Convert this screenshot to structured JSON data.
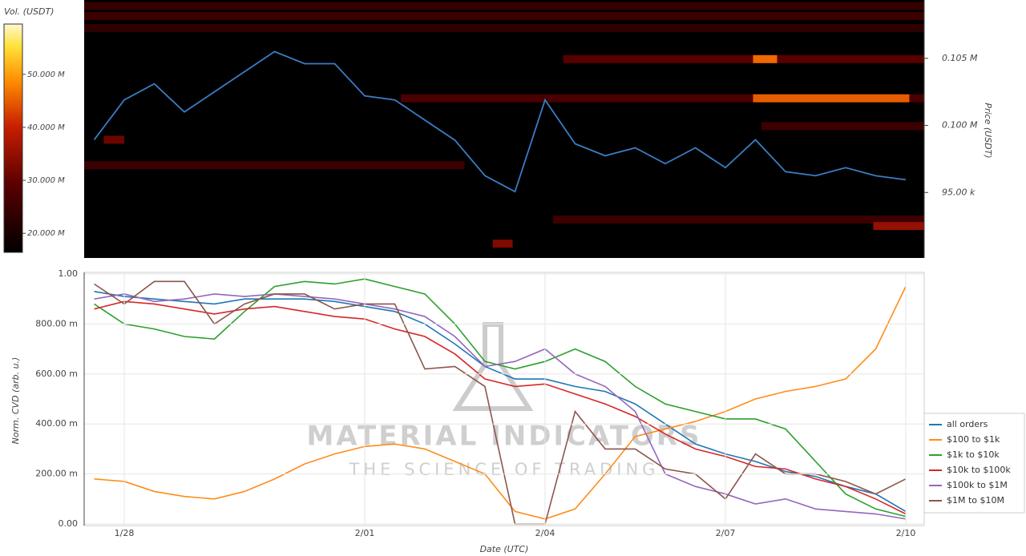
{
  "chart_data": [
    {
      "type": "heatmap",
      "colorbar_label": "Vol. (USDT)",
      "ylabel": "Price (USDT)",
      "xlim": [
        27.333,
        41.307
      ],
      "ylim": [
        90120,
        109346
      ],
      "yticks": [
        {
          "value": 95000,
          "label": "95.00 k"
        },
        {
          "value": 100000,
          "label": "0.100 M"
        },
        {
          "value": 105000,
          "label": "0.105 M"
        }
      ],
      "zlim": [
        16.4,
        59.5
      ],
      "zticks": [
        {
          "value": 20,
          "label": "20.000 M"
        },
        {
          "value": 30,
          "label": "30.000 M"
        },
        {
          "value": 40,
          "label": "40.000 M"
        },
        {
          "value": 50,
          "label": "50.000 M"
        }
      ],
      "levels": [
        {
          "price": 108900,
          "start": 27.333,
          "end": 41.307,
          "volume": 24
        },
        {
          "price": 108150,
          "start": 27.333,
          "end": 41.307,
          "volume": 25
        },
        {
          "price": 107260,
          "start": 27.333,
          "end": 41.307,
          "volume": 23
        },
        {
          "price": 104940,
          "start": 35.3,
          "end": 41.307,
          "volume": 29
        },
        {
          "price": 104940,
          "start": 38.46,
          "end": 38.86,
          "volume": 46
        },
        {
          "price": 102020,
          "start": 32.6,
          "end": 41.307,
          "volume": 27
        },
        {
          "price": 102020,
          "start": 38.46,
          "end": 41.06,
          "volume": 45
        },
        {
          "price": 99950,
          "start": 38.6,
          "end": 41.307,
          "volume": 25
        },
        {
          "price": 98930,
          "start": 27.66,
          "end": 28.0,
          "volume": 31
        },
        {
          "price": 97030,
          "start": 27.333,
          "end": 33.66,
          "volume": 25
        },
        {
          "price": 92980,
          "start": 35.13,
          "end": 41.307,
          "volume": 25
        },
        {
          "price": 92500,
          "start": 40.46,
          "end": 41.307,
          "volume": 35
        },
        {
          "price": 91190,
          "start": 34.13,
          "end": 34.46,
          "volume": 33
        }
      ],
      "x": [
        27.5,
        28,
        28.5,
        29,
        29.5,
        30,
        30.5,
        31,
        31.5,
        32,
        32.5,
        33,
        33.5,
        34,
        34.5,
        35,
        35.5,
        36,
        36.5,
        37,
        37.5,
        38,
        38.5,
        39,
        39.5,
        40,
        40.5,
        41
      ],
      "price": {
        "color": "#3a7dc4",
        "values": [
          98930,
          101900,
          103100,
          101000,
          102500,
          104000,
          105500,
          104600,
          104600,
          102200,
          101900,
          100400,
          98900,
          96250,
          95060,
          101900,
          98630,
          97740,
          98330,
          97150,
          98330,
          96850,
          98930,
          96550,
          96250,
          96850,
          96250,
          95950
        ]
      }
    },
    {
      "type": "line",
      "xlabel": "Date (UTC)",
      "ylabel": "Norm. CVD (arb. u.)",
      "xlim": [
        27.333,
        41.307
      ],
      "xticks": [
        {
          "value": 28,
          "label": "1/28"
        },
        {
          "value": 32,
          "label": "2/01"
        },
        {
          "value": 35,
          "label": "2/04"
        },
        {
          "value": 38,
          "label": "2/07"
        },
        {
          "value": 41,
          "label": "2/10"
        }
      ],
      "ylim": [
        0,
        1
      ],
      "yticks": [
        {
          "value": 0,
          "label": "0.00"
        },
        {
          "value": 0.2,
          "label": "200.00 m"
        },
        {
          "value": 0.4,
          "label": "400.00 m"
        },
        {
          "value": 0.6,
          "label": "600.00 m"
        },
        {
          "value": 0.8,
          "label": "800.00 m"
        },
        {
          "value": 1,
          "label": "1.00"
        }
      ],
      "grid": true,
      "legend": "lower right",
      "watermark": {
        "title": "MATERIAL INDICATORS",
        "subtitle": "THE SCIENCE OF TRADING"
      },
      "x": [
        27.5,
        28,
        28.5,
        29,
        29.5,
        30,
        30.5,
        31,
        31.5,
        32,
        32.5,
        33,
        33.5,
        34,
        34.5,
        35,
        35.5,
        36,
        36.5,
        37,
        37.5,
        38,
        38.5,
        39,
        39.5,
        40,
        40.5,
        41
      ],
      "series": [
        {
          "name": "all orders",
          "color": "#1f77b4",
          "values": [
            0.93,
            0.91,
            0.9,
            0.89,
            0.88,
            0.9,
            0.9,
            0.9,
            0.89,
            0.87,
            0.85,
            0.8,
            0.72,
            0.63,
            0.58,
            0.58,
            0.55,
            0.53,
            0.48,
            0.4,
            0.32,
            0.28,
            0.25,
            0.21,
            0.19,
            0.15,
            0.12,
            0.05
          ]
        },
        {
          "name": "$100 to $1k",
          "color": "#ff8c1a",
          "values": [
            0.18,
            0.17,
            0.13,
            0.11,
            0.1,
            0.13,
            0.18,
            0.24,
            0.28,
            0.31,
            0.32,
            0.3,
            0.25,
            0.2,
            0.05,
            0.02,
            0.06,
            0.2,
            0.35,
            0.38,
            0.41,
            0.45,
            0.5,
            0.53,
            0.55,
            0.58,
            0.7,
            0.95
          ]
        },
        {
          "name": "$1k to $10k",
          "color": "#2ca02c",
          "values": [
            0.88,
            0.8,
            0.78,
            0.75,
            0.74,
            0.85,
            0.95,
            0.97,
            0.96,
            0.98,
            0.95,
            0.92,
            0.8,
            0.65,
            0.62,
            0.65,
            0.7,
            0.65,
            0.55,
            0.48,
            0.45,
            0.42,
            0.42,
            0.38,
            0.25,
            0.12,
            0.06,
            0.03
          ]
        },
        {
          "name": "$10k to $100k",
          "color": "#d62728",
          "values": [
            0.86,
            0.89,
            0.88,
            0.86,
            0.84,
            0.86,
            0.87,
            0.85,
            0.83,
            0.82,
            0.78,
            0.75,
            0.68,
            0.58,
            0.55,
            0.56,
            0.52,
            0.48,
            0.43,
            0.36,
            0.3,
            0.27,
            0.23,
            0.22,
            0.18,
            0.15,
            0.1,
            0.04
          ]
        },
        {
          "name": "$100k to $1M",
          "color": "#9467bd",
          "values": [
            0.9,
            0.92,
            0.89,
            0.9,
            0.92,
            0.91,
            0.92,
            0.91,
            0.9,
            0.88,
            0.86,
            0.83,
            0.75,
            0.63,
            0.65,
            0.7,
            0.6,
            0.55,
            0.45,
            0.2,
            0.15,
            0.12,
            0.08,
            0.1,
            0.06,
            0.05,
            0.04,
            0.02
          ]
        },
        {
          "name": "$1M to $10M",
          "color": "#8c564b",
          "values": [
            0.96,
            0.88,
            0.97,
            0.97,
            0.8,
            0.88,
            0.92,
            0.92,
            0.86,
            0.88,
            0.88,
            0.62,
            0.63,
            0.55,
            0.0,
            0.0,
            0.45,
            0.3,
            0.3,
            0.22,
            0.2,
            0.1,
            0.28,
            0.2,
            0.2,
            0.17,
            0.12,
            0.18
          ]
        }
      ]
    }
  ]
}
